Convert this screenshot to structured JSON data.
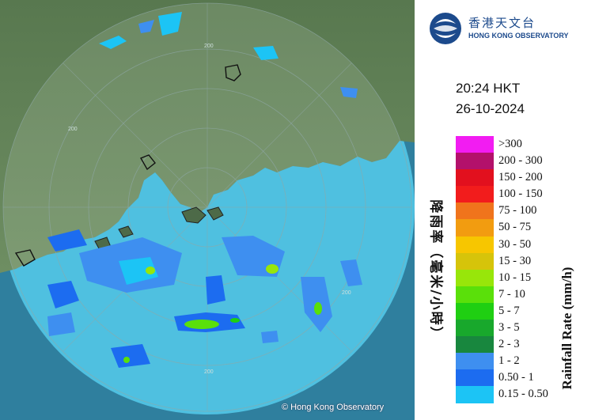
{
  "map": {
    "credit": "© Hong Kong Observatory",
    "range_labels": [
      "200",
      "200",
      "200",
      "200"
    ],
    "colors": {
      "sea": "#2d7fa0",
      "coverage_circle": "#55c3e4",
      "land": "#5f7d56"
    }
  },
  "logo": {
    "chinese_name": "香港天文台",
    "english_name": "HONG KONG OBSERVATORY",
    "icon": "hko-emblem-icon"
  },
  "timestamp": {
    "time": "20:24 HKT",
    "date": "26-10-2024"
  },
  "legend": {
    "title_en": "Rainfall Rate (mm/h)",
    "title_cn": "降雨率（毫米/小時）",
    "levels": [
      {
        "label": ">300",
        "color": "#f21cf2"
      },
      {
        "label": "200 - 300",
        "color": "#b3116b"
      },
      {
        "label": "150 - 200",
        "color": "#e2101e"
      },
      {
        "label": "100 - 150",
        "color": "#f21c1c"
      },
      {
        "label": "75 - 100",
        "color": "#f0741c"
      },
      {
        "label": "50 - 75",
        "color": "#f29c10"
      },
      {
        "label": "30 - 50",
        "color": "#f7c600"
      },
      {
        "label": "15 - 30",
        "color": "#d6c40a"
      },
      {
        "label": "10 - 15",
        "color": "#98e60a"
      },
      {
        "label": "7 - 10",
        "color": "#5ae00a"
      },
      {
        "label": "5 - 7",
        "color": "#1fcf12"
      },
      {
        "label": "3 - 5",
        "color": "#18a82c"
      },
      {
        "label": "2 - 3",
        "color": "#18873e"
      },
      {
        "label": "1 - 2",
        "color": "#3e8ff0"
      },
      {
        "label": "0.50 - 1",
        "color": "#1c6cf0"
      },
      {
        "label": "0.15 - 0.50",
        "color": "#1cc4f5"
      }
    ]
  }
}
